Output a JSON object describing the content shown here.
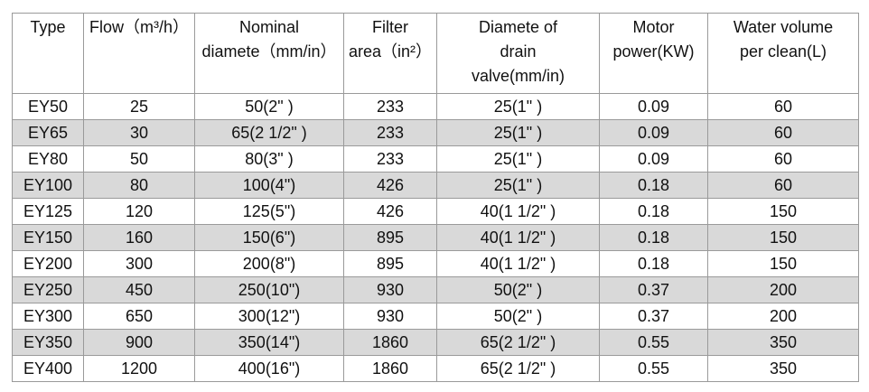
{
  "table": {
    "header": [
      [
        "Type"
      ],
      [
        "Flow（m³/h）"
      ],
      [
        "Nominal",
        "diamete（mm/in）"
      ],
      [
        "Filter",
        "area（in²）"
      ],
      [
        "Diamete of",
        "drain",
        "valve(mm/in)"
      ],
      [
        "Motor",
        "power(KW)"
      ],
      [
        "Water volume",
        "per clean(L)"
      ]
    ],
    "rows": [
      [
        "EY50",
        "25",
        "50(2\" )",
        "233",
        "25(1\" )",
        "0.09",
        "60"
      ],
      [
        "EY65",
        "30",
        "65(2 1/2\" )",
        "233",
        "25(1\" )",
        "0.09",
        "60"
      ],
      [
        "EY80",
        "50",
        "80(3\" )",
        "233",
        "25(1\" )",
        "0.09",
        "60"
      ],
      [
        "EY100",
        "80",
        "100(4\")",
        "426",
        "25(1\" )",
        "0.18",
        "60"
      ],
      [
        "EY125",
        "120",
        "125(5\")",
        "426",
        "40(1 1/2\" )",
        "0.18",
        "150"
      ],
      [
        "EY150",
        "160",
        "150(6\")",
        "895",
        "40(1 1/2\" )",
        "0.18",
        "150"
      ],
      [
        "EY200",
        "300",
        "200(8\")",
        "895",
        "40(1 1/2\" )",
        "0.18",
        "150"
      ],
      [
        "EY250",
        "450",
        "250(10\")",
        "930",
        "50(2\" )",
        "0.37",
        "200"
      ],
      [
        "EY300",
        "650",
        "300(12\")",
        "930",
        "50(2\" )",
        "0.37",
        "200"
      ],
      [
        "EY350",
        "900",
        "350(14\")",
        "1860",
        "65(2 1/2\" )",
        "0.55",
        "350"
      ],
      [
        "EY400",
        "1200",
        "400(16\")",
        "1860",
        "65(2 1/2\" )",
        "0.55",
        "350"
      ]
    ]
  }
}
